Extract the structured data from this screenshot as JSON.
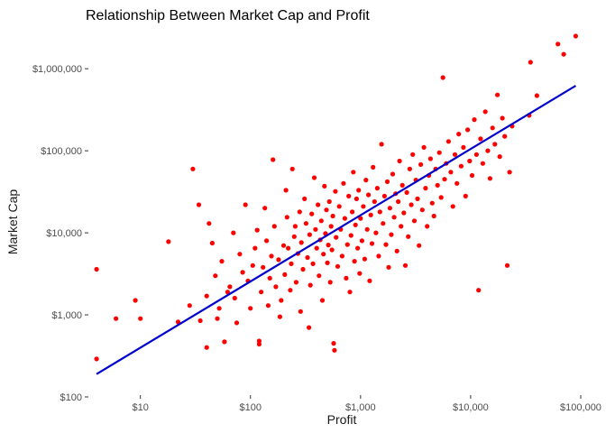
{
  "chart_data": {
    "type": "scatter",
    "title": "Relationship Between Market Cap and Profit",
    "xlabel": "Profit",
    "ylabel": "Market Cap",
    "x_scale": "log10",
    "y_scale": "log10",
    "xlim": [
      3.5,
      100000
    ],
    "ylim": [
      100,
      2500000
    ],
    "x_ticks": [
      {
        "value": 10,
        "label": "$10"
      },
      {
        "value": 100,
        "label": "$100"
      },
      {
        "value": 1000,
        "label": "$1,000"
      },
      {
        "value": 10000,
        "label": "$10,000"
      },
      {
        "value": 100000,
        "label": "$100,000"
      }
    ],
    "y_ticks": [
      {
        "value": 100,
        "label": "$100"
      },
      {
        "value": 1000,
        "label": "$1,000"
      },
      {
        "value": 10000,
        "label": "$10,000"
      },
      {
        "value": 100000,
        "label": "$100,000"
      },
      {
        "value": 1000000,
        "label": "$1,000,000"
      }
    ],
    "grid": false,
    "legend": "none",
    "point_color": "#ff0000",
    "line_color": "#0000cc",
    "trend_line": {
      "x": [
        4,
        90000
      ],
      "y": [
        190,
        620000
      ]
    },
    "points": [
      [
        4,
        290
      ],
      [
        4,
        3600
      ],
      [
        6,
        900
      ],
      [
        9,
        1500
      ],
      [
        10,
        900
      ],
      [
        18,
        7800
      ],
      [
        22,
        820
      ],
      [
        28,
        1300
      ],
      [
        30,
        60000
      ],
      [
        34,
        22000
      ],
      [
        35,
        850
      ],
      [
        40,
        400
      ],
      [
        40,
        1700
      ],
      [
        42,
        13000
      ],
      [
        45,
        7500
      ],
      [
        48,
        3000
      ],
      [
        50,
        900
      ],
      [
        52,
        1200
      ],
      [
        55,
        4500
      ],
      [
        58,
        470
      ],
      [
        62,
        1900
      ],
      [
        65,
        2200
      ],
      [
        70,
        10000
      ],
      [
        72,
        1600
      ],
      [
        75,
        800
      ],
      [
        80,
        5500
      ],
      [
        85,
        3300
      ],
      [
        90,
        22000
      ],
      [
        95,
        2600
      ],
      [
        100,
        1200
      ],
      [
        105,
        4000
      ],
      [
        110,
        6500
      ],
      [
        115,
        10800
      ],
      [
        120,
        480
      ],
      [
        120,
        440
      ],
      [
        125,
        1900
      ],
      [
        130,
        3800
      ],
      [
        135,
        20000
      ],
      [
        140,
        8000
      ],
      [
        145,
        1300
      ],
      [
        150,
        2800
      ],
      [
        155,
        5200
      ],
      [
        160,
        78000
      ],
      [
        165,
        12000
      ],
      [
        170,
        2200
      ],
      [
        180,
        4700
      ],
      [
        185,
        950
      ],
      [
        190,
        1500
      ],
      [
        200,
        7000
      ],
      [
        205,
        3100
      ],
      [
        210,
        33000
      ],
      [
        215,
        15500
      ],
      [
        220,
        6500
      ],
      [
        230,
        2000
      ],
      [
        235,
        4200
      ],
      [
        240,
        60000
      ],
      [
        250,
        9000
      ],
      [
        255,
        12000
      ],
      [
        260,
        2500
      ],
      [
        270,
        5600
      ],
      [
        280,
        18000
      ],
      [
        285,
        1100
      ],
      [
        290,
        7600
      ],
      [
        300,
        3600
      ],
      [
        310,
        26000
      ],
      [
        320,
        13000
      ],
      [
        330,
        5000
      ],
      [
        340,
        700
      ],
      [
        345,
        9500
      ],
      [
        350,
        2300
      ],
      [
        360,
        17000
      ],
      [
        370,
        4200
      ],
      [
        380,
        47000
      ],
      [
        390,
        11000
      ],
      [
        400,
        6500
      ],
      [
        410,
        22000
      ],
      [
        420,
        3000
      ],
      [
        430,
        8200
      ],
      [
        440,
        14000
      ],
      [
        450,
        1500
      ],
      [
        460,
        5500
      ],
      [
        470,
        37000
      ],
      [
        480,
        9800
      ],
      [
        490,
        19000
      ],
      [
        500,
        4300
      ],
      [
        510,
        7100
      ],
      [
        520,
        24000
      ],
      [
        530,
        2500
      ],
      [
        540,
        12000
      ],
      [
        550,
        6200
      ],
      [
        560,
        16000
      ],
      [
        570,
        450
      ],
      [
        580,
        370
      ],
      [
        590,
        32000
      ],
      [
        600,
        8800
      ],
      [
        620,
        3900
      ],
      [
        640,
        21000
      ],
      [
        660,
        11000
      ],
      [
        680,
        5200
      ],
      [
        700,
        40000
      ],
      [
        720,
        15000
      ],
      [
        740,
        2800
      ],
      [
        760,
        7200
      ],
      [
        780,
        28000
      ],
      [
        800,
        1900
      ],
      [
        820,
        9300
      ],
      [
        840,
        18000
      ],
      [
        860,
        55000
      ],
      [
        880,
        4500
      ],
      [
        900,
        12500
      ],
      [
        920,
        26000
      ],
      [
        940,
        6500
      ],
      [
        960,
        33000
      ],
      [
        980,
        3200
      ],
      [
        1000,
        15000
      ],
      [
        1030,
        8000
      ],
      [
        1060,
        21000
      ],
      [
        1090,
        4800
      ],
      [
        1120,
        44000
      ],
      [
        1150,
        11000
      ],
      [
        1180,
        29000
      ],
      [
        1210,
        2600
      ],
      [
        1240,
        16500
      ],
      [
        1270,
        7400
      ],
      [
        1300,
        63000
      ],
      [
        1340,
        24000
      ],
      [
        1380,
        10000
      ],
      [
        1420,
        35000
      ],
      [
        1460,
        5200
      ],
      [
        1500,
        18000
      ],
      [
        1550,
        120000
      ],
      [
        1600,
        13000
      ],
      [
        1650,
        28000
      ],
      [
        1700,
        7200
      ],
      [
        1750,
        42000
      ],
      [
        1800,
        3800
      ],
      [
        1850,
        20000
      ],
      [
        1900,
        9500
      ],
      [
        1960,
        52000
      ],
      [
        2020,
        15500
      ],
      [
        2080,
        30000
      ],
      [
        2140,
        6000
      ],
      [
        2200,
        24000
      ],
      [
        2260,
        75000
      ],
      [
        2330,
        12000
      ],
      [
        2400,
        38000
      ],
      [
        2470,
        17500
      ],
      [
        2550,
        4000
      ],
      [
        2630,
        31000
      ],
      [
        2710,
        9000
      ],
      [
        2800,
        60000
      ],
      [
        2890,
        22000
      ],
      [
        2980,
        90000
      ],
      [
        3080,
        14000
      ],
      [
        3180,
        44000
      ],
      [
        3290,
        26000
      ],
      [
        3400,
        7000
      ],
      [
        3520,
        68000
      ],
      [
        3640,
        19000
      ],
      [
        3760,
        110000
      ],
      [
        3890,
        35000
      ],
      [
        4030,
        12000
      ],
      [
        4170,
        50000
      ],
      [
        4320,
        80000
      ],
      [
        4480,
        23000
      ],
      [
        4640,
        16000
      ],
      [
        4810,
        60000
      ],
      [
        5000,
        38000
      ],
      [
        5200,
        95000
      ],
      [
        5400,
        27000
      ],
      [
        5600,
        780000
      ],
      [
        5800,
        45000
      ],
      [
        6000,
        70000
      ],
      [
        6300,
        130000
      ],
      [
        6600,
        55000
      ],
      [
        6900,
        21000
      ],
      [
        7200,
        90000
      ],
      [
        7500,
        40000
      ],
      [
        7800,
        160000
      ],
      [
        8200,
        65000
      ],
      [
        8600,
        110000
      ],
      [
        9000,
        28000
      ],
      [
        9400,
        180000
      ],
      [
        9800,
        75000
      ],
      [
        10300,
        50000
      ],
      [
        10800,
        240000
      ],
      [
        11300,
        90000
      ],
      [
        11800,
        2000
      ],
      [
        12300,
        140000
      ],
      [
        12900,
        70000
      ],
      [
        13600,
        300000
      ],
      [
        14300,
        100000
      ],
      [
        15000,
        46000
      ],
      [
        15800,
        190000
      ],
      [
        16600,
        120000
      ],
      [
        17500,
        480000
      ],
      [
        18400,
        85000
      ],
      [
        19400,
        250000
      ],
      [
        20400,
        150000
      ],
      [
        21500,
        4000
      ],
      [
        22600,
        55000
      ],
      [
        23800,
        200000
      ],
      [
        34000,
        270000
      ],
      [
        35000,
        1200000
      ],
      [
        40000,
        470000
      ],
      [
        62000,
        2000000
      ],
      [
        70000,
        1500000
      ],
      [
        90000,
        2500000
      ]
    ]
  }
}
